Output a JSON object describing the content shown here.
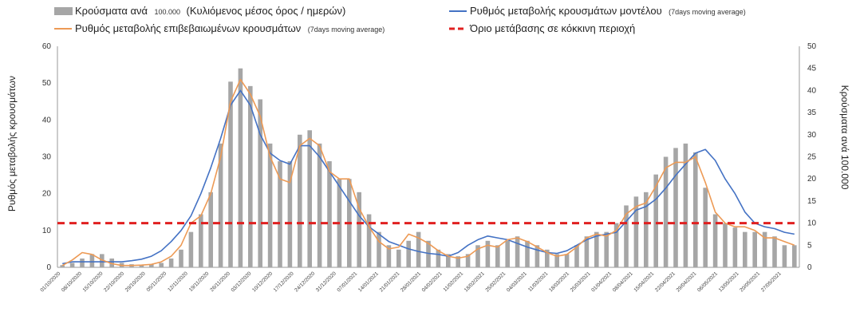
{
  "chart_data": {
    "type": "bar",
    "legend": {
      "bars_label_main": "Κρούσματα ανά",
      "bars_label_small": "100.000",
      "bars_label_rest": "(Κυλιόμενος μέσος όρος / ημερών)",
      "model_label_main": "Ρυθμός μεταβολής κρουσμάτων μοντέλου",
      "model_label_small": "(7days moving average)",
      "confirmed_label_main": "Ρυθμός μεταβολής επιβεβαιωμένων κρουσμάτων",
      "confirmed_label_small": "(7days moving average)",
      "threshold_label": "Όριο μετάβασης σε κόκκινη περιοχή"
    },
    "ylabel_left": "Ρυθμός μεταβολής κρουσμάτων",
    "ylabel_right": "Κρούσματα ανά 100.000",
    "ylim_left": [
      0,
      60
    ],
    "ylim_right": [
      0,
      50
    ],
    "yticks_left": [
      "0",
      "10",
      "20",
      "30",
      "40",
      "50",
      "60"
    ],
    "yticks_right": [
      "0",
      "5",
      "10",
      "15",
      "20",
      "25",
      "30",
      "35",
      "40",
      "45",
      "50"
    ],
    "threshold_value": 12,
    "x_labels": [
      "01/10/2020",
      "08/10/2020",
      "15/10/2020",
      "22/10/2020",
      "29/10/2020",
      "05/11/2020",
      "12/11/2020",
      "19/11/2020",
      "26/11/2020",
      "03/12/2020",
      "10/12/2020",
      "17/12/2020",
      "24/12/2020",
      "31/12/2020",
      "07/01/2021",
      "14/01/2021",
      "21/01/2021",
      "28/01/2021",
      "04/02/2021",
      "11/02/2021",
      "18/02/2021",
      "25/02/2021",
      "04/03/2021",
      "11/03/2021",
      "18/03/2021",
      "25/03/2021",
      "01/04/2021",
      "08/04/2021",
      "15/04/2021",
      "22/04/2021",
      "29/04/2021",
      "06/05/2021",
      "13/05/2021",
      "20/05/2021",
      "27/05/2021"
    ],
    "series": [
      {
        "name": "Κρούσματα ανά 100.000 (Κυλιόμενος μέσος όρος / ημερών)",
        "axis": "right",
        "values": [
          0.5,
          1,
          2,
          3,
          3,
          2,
          1,
          0.7,
          0.5,
          0.7,
          1,
          2,
          4,
          8,
          12,
          17,
          28,
          42,
          45,
          41,
          38,
          28,
          24,
          24,
          30,
          31,
          28,
          24,
          20,
          20,
          17,
          12,
          8,
          5,
          4,
          6,
          8,
          6,
          4,
          3,
          2.5,
          3,
          5,
          6,
          5,
          6,
          7,
          6,
          5,
          4,
          3,
          3,
          5,
          7,
          8,
          8,
          10,
          14,
          16,
          17,
          21,
          25,
          27,
          28,
          26,
          18,
          12,
          10,
          9,
          8,
          8,
          8,
          7,
          5,
          5
        ]
      },
      {
        "name": "Ρυθμός μεταβολής κρουσμάτων μοντέλου",
        "axis": "left",
        "values": [
          1,
          1.5,
          1.5,
          1.5,
          1.5,
          1.5,
          1.5,
          1.8,
          2.2,
          3,
          4.5,
          7,
          10,
          14,
          20,
          27,
          35,
          44,
          48,
          44,
          36,
          31,
          29,
          28,
          33,
          33,
          30,
          26,
          22,
          18,
          14,
          11,
          9,
          7,
          6,
          5,
          4.3,
          3.8,
          3.5,
          3,
          4,
          6,
          7.5,
          8.5,
          8,
          7.5,
          6.5,
          5.5,
          4.7,
          4,
          3.8,
          4.5,
          6,
          7.5,
          8.5,
          9,
          9.5,
          12.5,
          15.5,
          16.5,
          18.5,
          21.5,
          25,
          28,
          31,
          32,
          29,
          24,
          20,
          15,
          12,
          11,
          10.5,
          9.5,
          9
        ]
      },
      {
        "name": "Ρυθμός μεταβολής επιβεβαιωμένων κρουσμάτων",
        "axis": "left",
        "values": [
          0.5,
          2,
          4,
          3.5,
          2,
          1,
          0.5,
          0.5,
          0.6,
          0.8,
          1.5,
          3,
          6,
          12,
          14,
          20,
          30,
          45,
          51,
          47,
          41,
          30,
          24,
          23,
          33,
          35,
          33,
          26,
          24,
          24,
          16,
          11,
          7,
          5,
          5.5,
          9,
          8,
          6.5,
          4.5,
          3,
          2.5,
          3,
          5,
          6,
          5.5,
          7.5,
          8,
          7,
          5.5,
          4,
          3,
          3.5,
          5.5,
          8,
          9,
          8.5,
          10,
          14.5,
          16.5,
          17.5,
          22,
          27,
          28.5,
          28.5,
          30,
          23,
          15,
          12,
          11,
          11,
          10,
          8,
          8,
          7,
          6
        ]
      }
    ]
  }
}
